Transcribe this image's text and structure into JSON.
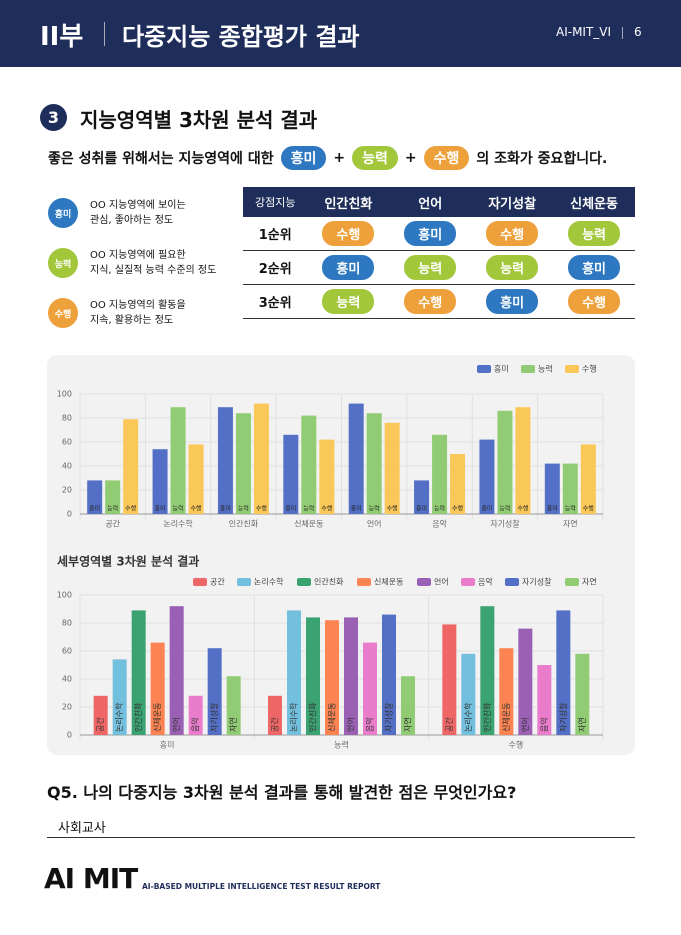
{
  "header": {
    "part": "II부",
    "title": "다중지능 종합평가 결과",
    "brand": "AI-MIT_VI",
    "page": "6"
  },
  "section": {
    "number": "3",
    "title": "지능영역별 3차원 분석 결과"
  },
  "badges": [
    {
      "label": "흥미",
      "color": "#2d78c0"
    },
    {
      "label": "능력",
      "color": "#a2c73a"
    },
    {
      "label": "수행",
      "color": "#eea13a"
    }
  ],
  "intro": [
    "좋은 성취를 위해서는 지능영역에 대한",
    "흥미",
    "+",
    "능력",
    "+",
    "수행",
    "의 조화가 중요합니다."
  ],
  "legend": [
    {
      "badge": "흥미",
      "lines": [
        "OO 지능영역에 보이는",
        "관심, 좋아하는 정도"
      ]
    },
    {
      "badge": "능력",
      "lines": [
        "OO 지능영역에 필요한",
        "지식, 실질적 능력 수준의 정도"
      ]
    },
    {
      "badge": "수행",
      "lines": [
        "OO 지능영역의 활동을",
        "지속, 활용하는 정도"
      ]
    }
  ],
  "table": {
    "header": [
      "강점지능",
      "인간친화",
      "언어",
      "자기성찰",
      "신체운동"
    ],
    "rows": [
      [
        "1순위",
        "수행",
        "흥미",
        "수행",
        "능력"
      ],
      [
        "2순위",
        "흥미",
        "능력",
        "능력",
        "흥미"
      ],
      [
        "3순위",
        "능력",
        "수행",
        "흥미",
        "수행"
      ]
    ]
  },
  "chart_data": [
    {
      "type": "bar",
      "categories": [
        "공간",
        "논리수학",
        "인간친화",
        "신체운동",
        "언어",
        "음악",
        "자기성찰",
        "자연"
      ],
      "series": [
        {
          "name": "흥미",
          "color": "#5470c6",
          "values": [
            28,
            54,
            89,
            66,
            92,
            28,
            62,
            42
          ]
        },
        {
          "name": "능력",
          "color": "#91cc75",
          "values": [
            28,
            89,
            84,
            82,
            84,
            66,
            86,
            42
          ]
        },
        {
          "name": "수행",
          "color": "#fac858",
          "values": [
            79,
            58,
            92,
            62,
            76,
            50,
            89,
            58
          ]
        }
      ],
      "ylim": [
        0,
        100
      ],
      "yticks": [
        0,
        20,
        40,
        60,
        80,
        100
      ],
      "grid": true,
      "legend": "top-right"
    },
    {
      "type": "bar",
      "title": "세부영역별 3차원 분석 결과",
      "categories": [
        "흥미",
        "능력",
        "수행"
      ],
      "series": [
        {
          "name": "공간",
          "color": "#ee6666",
          "values": [
            28,
            28,
            79
          ]
        },
        {
          "name": "논리수학",
          "color": "#73c0de",
          "values": [
            54,
            89,
            58
          ]
        },
        {
          "name": "인간친화",
          "color": "#3ba272",
          "values": [
            89,
            84,
            92
          ]
        },
        {
          "name": "신체운동",
          "color": "#fc8452",
          "values": [
            66,
            82,
            62
          ]
        },
        {
          "name": "언어",
          "color": "#9a60b4",
          "values": [
            92,
            84,
            76
          ]
        },
        {
          "name": "음악",
          "color": "#ea7ccc",
          "values": [
            28,
            66,
            50
          ]
        },
        {
          "name": "자기성찰",
          "color": "#5470c6",
          "values": [
            62,
            86,
            89
          ]
        },
        {
          "name": "자연",
          "color": "#91cc75",
          "values": [
            42,
            42,
            58
          ]
        }
      ],
      "ylim": [
        0,
        100
      ],
      "yticks": [
        0,
        20,
        40,
        60,
        80,
        100
      ],
      "grid": true,
      "legend": "top-right"
    }
  ],
  "question": {
    "text": "Q5. 나의 다중지능 3차원 분석 결과를 통해 발견한 점은 무엇인가요?",
    "answer": "사회교사"
  },
  "footer": {
    "logo": "AI MIT",
    "tagline": "AI-BASED MULTIPLE INTELLIGENCE TEST RESULT REPORT"
  }
}
